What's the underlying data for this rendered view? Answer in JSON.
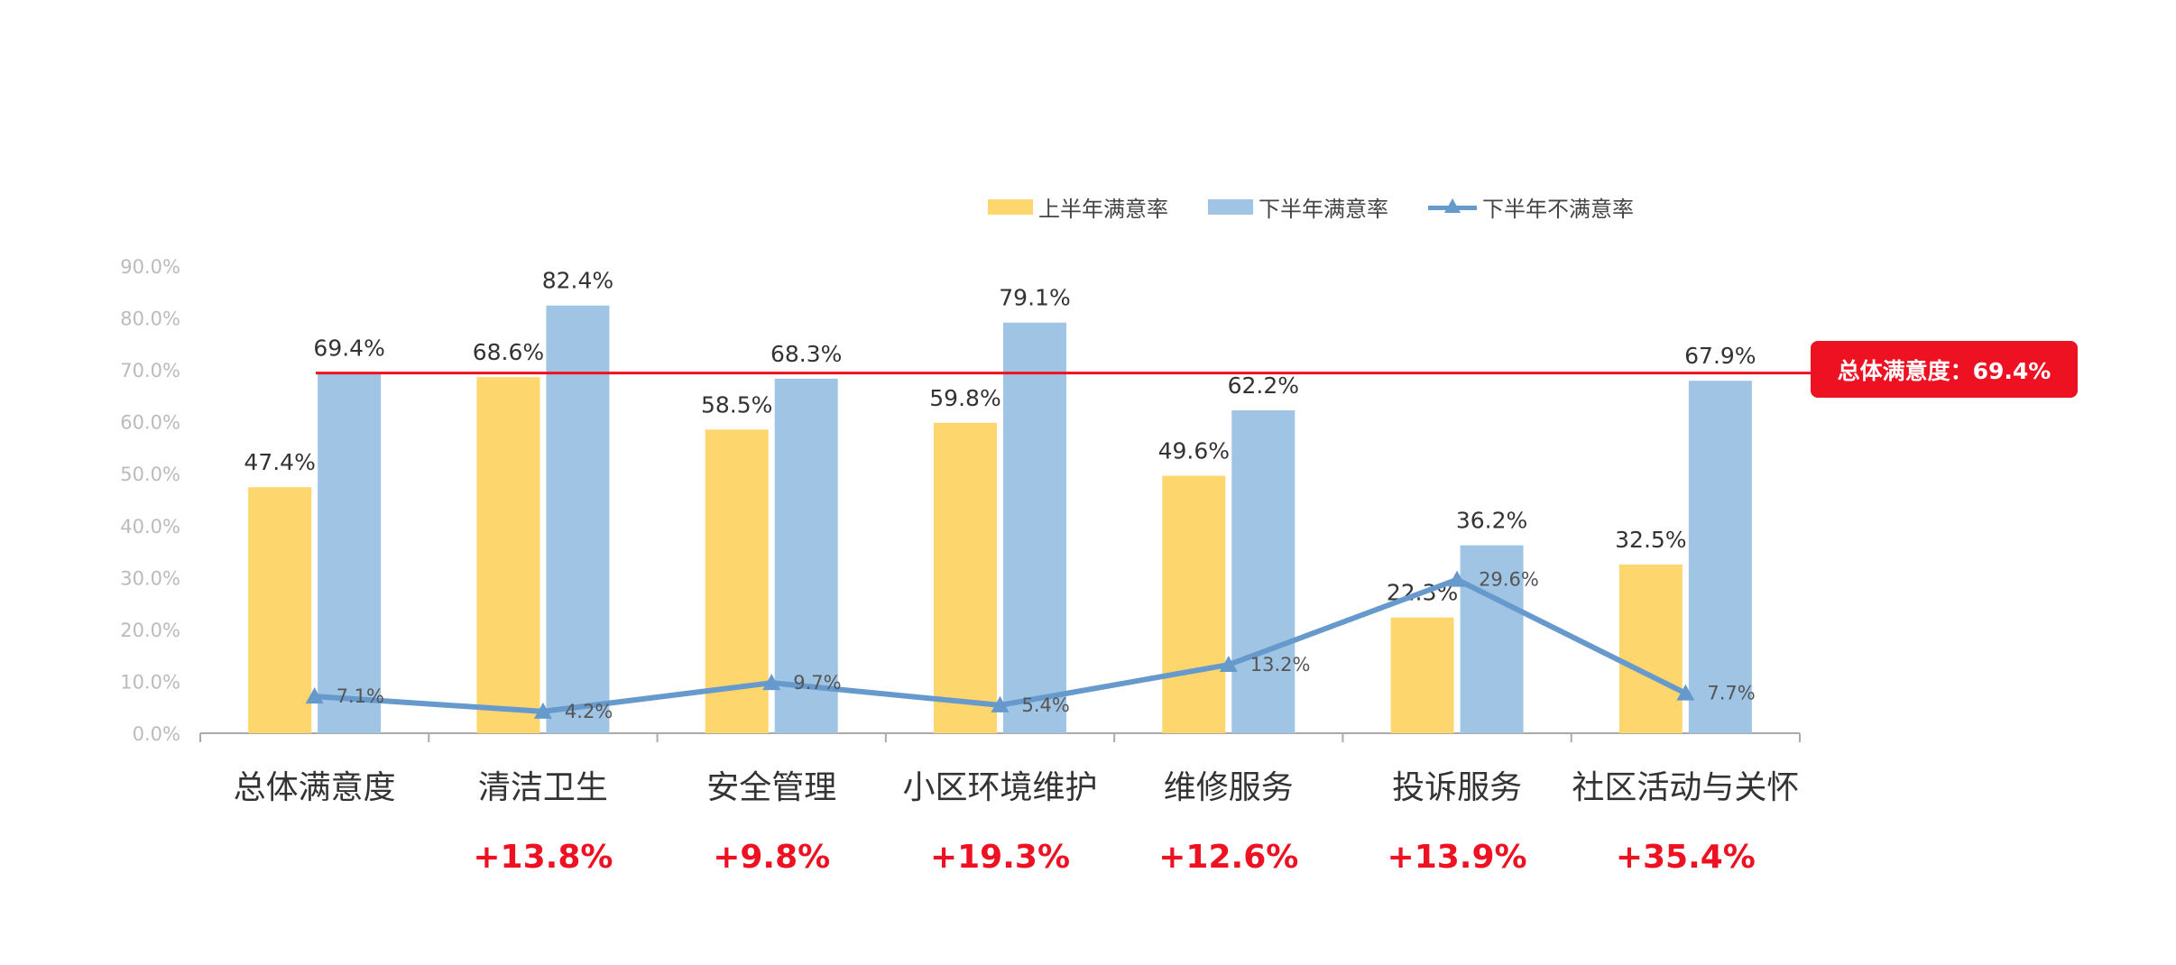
{
  "legend": {
    "h1": "上半年满意率",
    "h2": "下半年满意率",
    "dis": "下半年不满意率"
  },
  "reference": {
    "value": 69.4,
    "label": "总体满意度：69.4%"
  },
  "colors": {
    "h1": "#fdd66e",
    "h2": "#9fc4e4",
    "dis": "#6699cc",
    "reference": "#ee1122",
    "axis_label": "#bbbbbb",
    "category_label": "#333333",
    "bar_label": "#333333",
    "change": "#ee1122"
  },
  "chart_data": {
    "type": "bar",
    "ylim": [
      0,
      90
    ],
    "yticks": [
      "0.0%",
      "10.0%",
      "20.0%",
      "30.0%",
      "40.0%",
      "50.0%",
      "60.0%",
      "70.0%",
      "80.0%",
      "90.0%"
    ],
    "grid": false,
    "legend_position": "top",
    "categories": [
      "总体满意度",
      "清洁卫生",
      "安全管理",
      "小区环境维护",
      "维修服务",
      "投诉服务",
      "社区活动与关怀"
    ],
    "series": [
      {
        "name": "上半年满意率",
        "type": "bar",
        "values": [
          47.4,
          68.6,
          58.5,
          59.8,
          49.6,
          22.3,
          32.5
        ],
        "labels": [
          "47.4%",
          "68.6%",
          "58.5%",
          "59.8%",
          "49.6%",
          "22.3%",
          "32.5%"
        ]
      },
      {
        "name": "下半年满意率",
        "type": "bar",
        "values": [
          69.4,
          82.4,
          68.3,
          79.1,
          62.2,
          36.2,
          67.9
        ],
        "labels": [
          "69.4%",
          "82.4%",
          "68.3%",
          "79.1%",
          "62.2%",
          "36.2%",
          "67.9%"
        ]
      },
      {
        "name": "下半年不满意率",
        "type": "line",
        "values": [
          7.1,
          4.2,
          9.7,
          5.4,
          13.2,
          29.6,
          7.7
        ],
        "labels": [
          "7.1%",
          "4.2%",
          "9.7%",
          "5.4%",
          "13.2%",
          "29.6%",
          "7.7%"
        ]
      }
    ],
    "changes": [
      "",
      "+13.8%",
      "+9.8%",
      "+19.3%",
      "+12.6%",
      "+13.9%",
      "+35.4%"
    ]
  }
}
